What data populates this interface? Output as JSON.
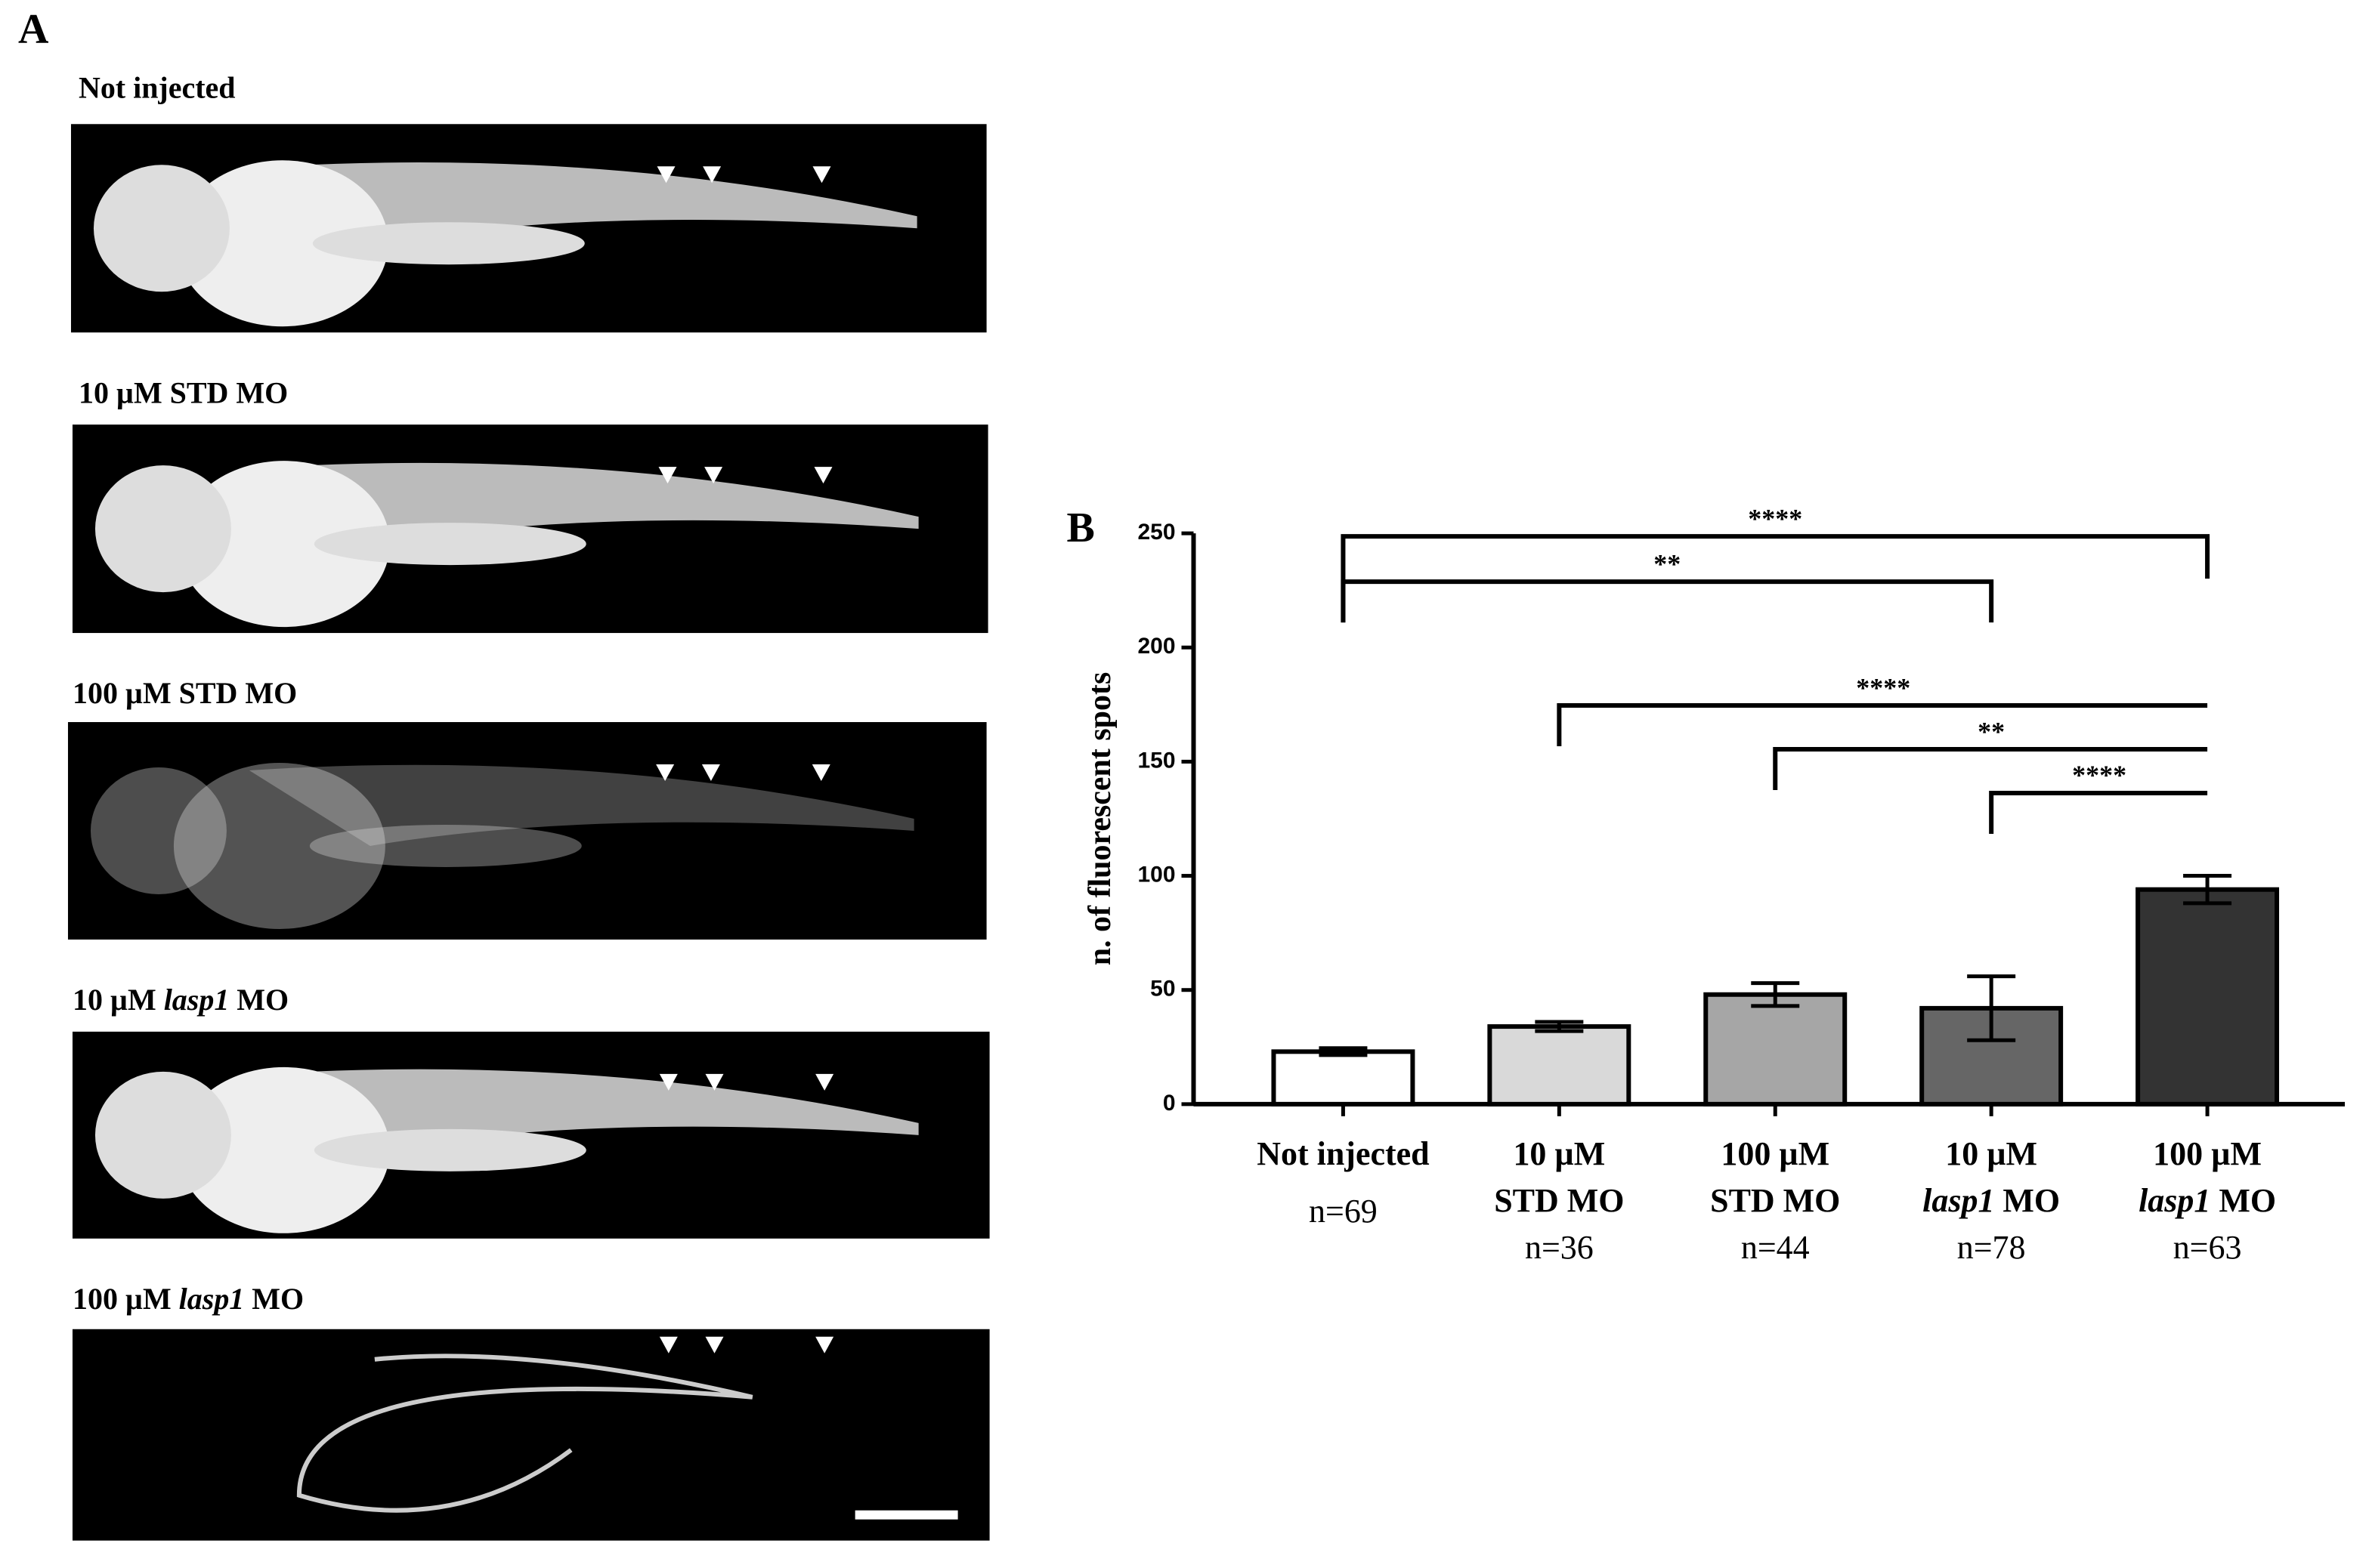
{
  "italic_term": "lasp1",
  "panel_a": {
    "label": "A",
    "images": [
      {
        "title": "Not injected"
      },
      {
        "title": "10 µM STD MO"
      },
      {
        "title": "100 µM STD MO"
      },
      {
        "title": "10 µM lasp1 MO"
      },
      {
        "title": "100 µM lasp1 MO"
      }
    ]
  },
  "chart_data": {
    "type": "bar",
    "panel_label": "B",
    "y_label": "n. of fluorescent spots",
    "categories": [
      [
        "Not injected"
      ],
      [
        "10 µM",
        "STD MO"
      ],
      [
        "100 µM",
        "STD MO"
      ],
      [
        "10 µM",
        "lasp1 MO"
      ],
      [
        "100 µM",
        "lasp1 MO"
      ]
    ],
    "n_labels": [
      "n=69",
      "n=36",
      "n=44",
      "n=78",
      "n=63"
    ],
    "values": [
      23,
      34,
      48,
      42,
      94
    ],
    "errors": [
      1.5,
      2,
      5,
      14,
      6
    ],
    "colors": [
      "#ffffff",
      "#d9d9d9",
      "#a6a6a6",
      "#666666",
      "#333333"
    ],
    "ylim": [
      0,
      250
    ],
    "yticks": [
      0,
      50,
      100,
      150,
      200,
      250
    ],
    "comparisons": [
      {
        "from": 0,
        "to": 4,
        "label": "****"
      },
      {
        "from": 0,
        "to": 3,
        "label": "**"
      },
      {
        "from": 1,
        "to": 4,
        "label": "****"
      },
      {
        "from": 2,
        "to": 4,
        "label": "**"
      },
      {
        "from": 3,
        "to": 4,
        "label": "****"
      }
    ]
  }
}
